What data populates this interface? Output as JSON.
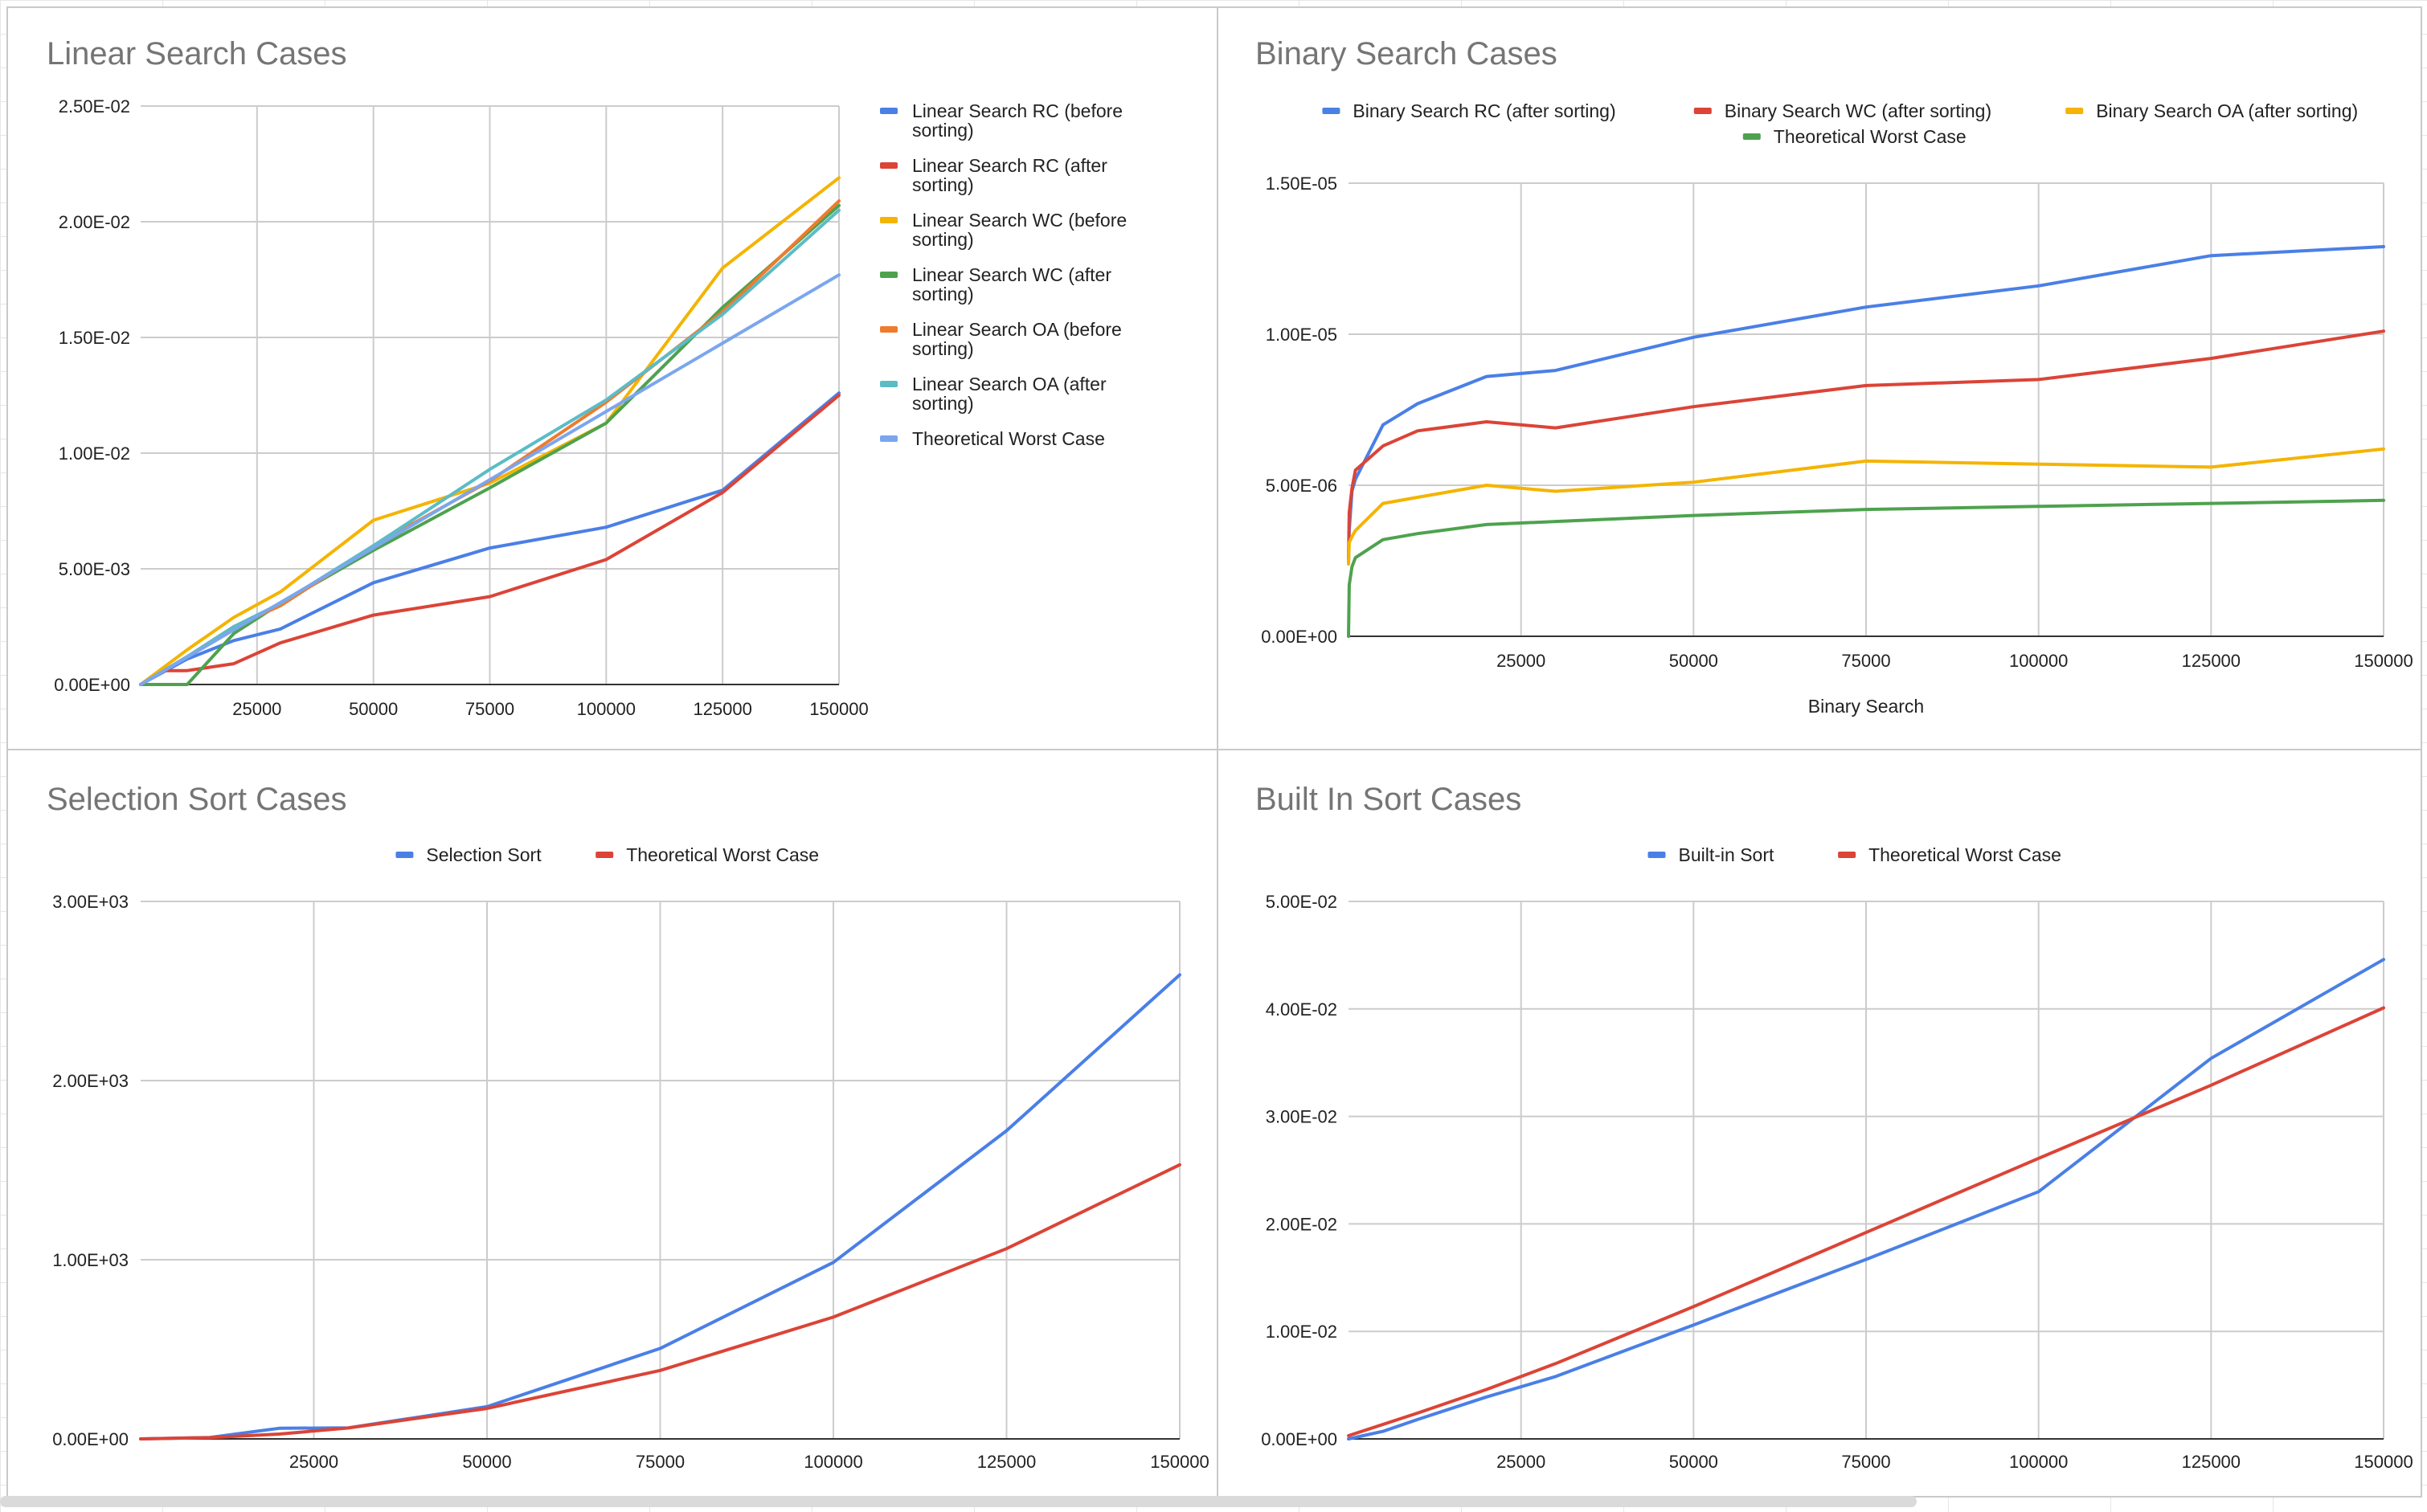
{
  "chart_data": [
    {
      "type": "line",
      "title": "Linear Search Cases",
      "xlabel": "",
      "ylabel": "",
      "xlim": [
        0,
        150000
      ],
      "ylim": [
        0,
        0.025
      ],
      "x_ticks": [
        "25000",
        "50000",
        "75000",
        "100000",
        "125000",
        "150000"
      ],
      "y_ticks": [
        "0.00E+00",
        "5.00E-03",
        "1.00E-02",
        "1.50E-02",
        "2.00E-02",
        "2.50E-02"
      ],
      "grid": true,
      "legend_position": "right",
      "series": [
        {
          "name": "Linear Search RC (before sorting)",
          "color": "#4a7fe6",
          "x": [
            0,
            10000,
            20000,
            30000,
            50000,
            75000,
            100000,
            125000,
            150000
          ],
          "values": [
            0,
            0.0011,
            0.0019,
            0.0024,
            0.0044,
            0.0059,
            0.0068,
            0.0084,
            0.0126
          ]
        },
        {
          "name": "Linear Search RC (after sorting)",
          "color": "#db4437",
          "x": [
            0,
            5000,
            10000,
            20000,
            30000,
            50000,
            75000,
            100000,
            125000,
            150000
          ],
          "values": [
            0,
            0.0006,
            0.0006,
            0.0009,
            0.0018,
            0.003,
            0.0038,
            0.0054,
            0.0083,
            0.0125
          ]
        },
        {
          "name": "Linear Search WC (before sorting)",
          "color": "#f4b400",
          "x": [
            0,
            10000,
            20000,
            30000,
            50000,
            75000,
            100000,
            125000,
            150000
          ],
          "values": [
            0,
            0.0015,
            0.0029,
            0.004,
            0.0071,
            0.0087,
            0.0113,
            0.018,
            0.0219
          ]
        },
        {
          "name": "Linear Search WC (after sorting)",
          "color": "#4ea24e",
          "x": [
            0,
            10000,
            20000,
            30000,
            50000,
            75000,
            100000,
            125000,
            150000
          ],
          "values": [
            0,
            0,
            0.0022,
            0.0035,
            0.0058,
            0.0085,
            0.0113,
            0.0163,
            0.0207
          ]
        },
        {
          "name": "Linear Search OA (before sorting)",
          "color": "#ef7b2e",
          "x": [
            0,
            10000,
            20000,
            30000,
            50000,
            75000,
            100000,
            125000,
            150000
          ],
          "values": [
            0,
            0.0012,
            0.0025,
            0.0034,
            0.006,
            0.0088,
            0.0122,
            0.0161,
            0.0209
          ]
        },
        {
          "name": "Linear Search OA (after sorting)",
          "color": "#5bbcc6",
          "x": [
            0,
            10000,
            20000,
            30000,
            50000,
            75000,
            100000,
            125000,
            150000
          ],
          "values": [
            0,
            0.0012,
            0.0025,
            0.0035,
            0.006,
            0.0093,
            0.0123,
            0.016,
            0.0205
          ]
        },
        {
          "name": "Theoretical Worst Case",
          "color": "#7ba6ee",
          "x": [
            0,
            150000
          ],
          "values": [
            0,
            0.0177
          ]
        }
      ]
    },
    {
      "type": "line",
      "title": "Binary Search Cases",
      "xlabel": "Binary Search",
      "ylabel": "",
      "xlim": [
        0,
        150000
      ],
      "ylim": [
        0,
        1.5e-05
      ],
      "x_ticks": [
        "25000",
        "50000",
        "75000",
        "100000",
        "125000",
        "150000"
      ],
      "y_ticks": [
        "0.00E+00",
        "5.00E-06",
        "1.00E-05",
        "1.50E-05"
      ],
      "grid": true,
      "legend_position": "top",
      "series": [
        {
          "name": "Binary Search RC (after sorting)",
          "color": "#4a7fe6",
          "x": [
            0,
            100,
            500,
            1000,
            5000,
            10000,
            20000,
            30000,
            50000,
            75000,
            100000,
            125000,
            150000
          ],
          "values": [
            2.4e-06,
            3.5e-06,
            4.8e-06,
            5.2e-06,
            7e-06,
            7.7e-06,
            8.6e-06,
            8.8e-06,
            9.9e-06,
            1.09e-05,
            1.16e-05,
            1.26e-05,
            1.29e-05
          ]
        },
        {
          "name": "Binary Search WC (after sorting)",
          "color": "#db4437",
          "x": [
            0,
            100,
            500,
            1000,
            5000,
            10000,
            20000,
            30000,
            50000,
            75000,
            100000,
            125000,
            150000
          ],
          "values": [
            2.5e-06,
            4.1e-06,
            4.9e-06,
            5.5e-06,
            6.3e-06,
            6.8e-06,
            7.1e-06,
            6.9e-06,
            7.6e-06,
            8.3e-06,
            8.5e-06,
            9.2e-06,
            1.01e-05
          ]
        },
        {
          "name": "Binary Search OA (after sorting)",
          "color": "#f4b400",
          "x": [
            0,
            100,
            500,
            1000,
            5000,
            10000,
            20000,
            30000,
            50000,
            75000,
            100000,
            125000,
            150000
          ],
          "values": [
            2.4e-06,
            3.1e-06,
            3.3e-06,
            3.5e-06,
            4.4e-06,
            4.6e-06,
            5e-06,
            4.8e-06,
            5.1e-06,
            5.8e-06,
            5.7e-06,
            5.6e-06,
            6.2e-06
          ]
        },
        {
          "name": "Theoretical Worst Case",
          "color": "#4ea24e",
          "x": [
            0,
            100,
            500,
            1000,
            5000,
            10000,
            20000,
            30000,
            50000,
            75000,
            100000,
            125000,
            150000
          ],
          "values": [
            0,
            1.7e-06,
            2.3e-06,
            2.6e-06,
            3.2e-06,
            3.4e-06,
            3.7e-06,
            3.8e-06,
            4e-06,
            4.2e-06,
            4.3e-06,
            4.4e-06,
            4.5e-06
          ]
        }
      ]
    },
    {
      "type": "line",
      "title": "Selection Sort Cases",
      "xlabel": "",
      "ylabel": "",
      "xlim": [
        0,
        150000
      ],
      "ylim": [
        0,
        3000
      ],
      "x_ticks": [
        "25000",
        "50000",
        "75000",
        "100000",
        "125000",
        "150000"
      ],
      "y_ticks": [
        "0.00E+00",
        "1.00E+03",
        "2.00E+03",
        "3.00E+03"
      ],
      "grid": true,
      "legend_position": "top",
      "series": [
        {
          "name": "Selection Sort",
          "color": "#4a7fe6",
          "x": [
            0,
            10000,
            20000,
            30000,
            50000,
            75000,
            100000,
            125000,
            150000
          ],
          "values": [
            0,
            8,
            59,
            62,
            180,
            505,
            985,
            1720,
            2590
          ]
        },
        {
          "name": "Theoretical Worst Case",
          "color": "#db4437",
          "x": [
            0,
            10000,
            20000,
            30000,
            50000,
            75000,
            100000,
            125000,
            150000
          ],
          "values": [
            0,
            7,
            27,
            61,
            170,
            382,
            680,
            1062,
            1530
          ]
        }
      ]
    },
    {
      "type": "line",
      "title": "Built In Sort Cases",
      "xlabel": "",
      "ylabel": "",
      "xlim": [
        0,
        150000
      ],
      "ylim": [
        0,
        0.05
      ],
      "x_ticks": [
        "25000",
        "50000",
        "75000",
        "100000",
        "125000",
        "150000"
      ],
      "y_ticks": [
        "0.00E+00",
        "1.00E-02",
        "2.00E-02",
        "3.00E-02",
        "4.00E-02",
        "5.00E-02"
      ],
      "grid": true,
      "legend_position": "top",
      "series": [
        {
          "name": "Built-in Sort",
          "color": "#4a7fe6",
          "x": [
            0,
            5000,
            10000,
            20000,
            30000,
            50000,
            75000,
            100000,
            125000,
            150000
          ],
          "values": [
            0,
            0.0007,
            0.0018,
            0.0039,
            0.0058,
            0.0106,
            0.0167,
            0.023,
            0.0354,
            0.0446
          ]
        },
        {
          "name": "Theoretical Worst Case",
          "color": "#db4437",
          "x": [
            0,
            10000,
            20000,
            30000,
            50000,
            75000,
            100000,
            125000,
            150000
          ],
          "values": [
            0.0003,
            0.0024,
            0.0046,
            0.007,
            0.0123,
            0.0192,
            0.0261,
            0.0329,
            0.0401
          ]
        }
      ]
    }
  ]
}
